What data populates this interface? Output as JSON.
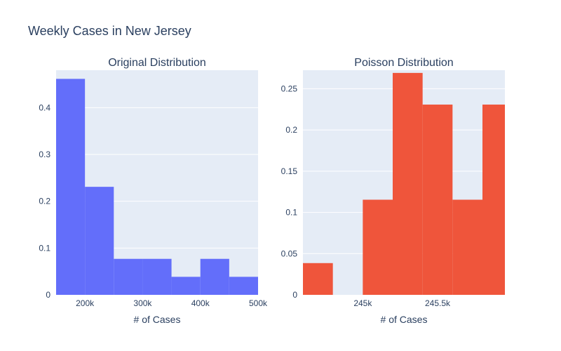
{
  "title": "Weekly Cases in New Jersey",
  "colors": {
    "plot_bg": "#E5ECF6",
    "grid": "#ffffff",
    "text": "#2a3f5f"
  },
  "chart_data": [
    {
      "type": "bar",
      "title": "Original Distribution",
      "xlabel": "# of Cases",
      "ylabel": "",
      "color": "#636EFA",
      "xlim": [
        150000,
        500000
      ],
      "ylim": [
        0,
        0.48
      ],
      "bins": [
        {
          "x0": 150000,
          "x1": 200000,
          "value": 0.4615
        },
        {
          "x0": 200000,
          "x1": 250000,
          "value": 0.2308
        },
        {
          "x0": 250000,
          "x1": 300000,
          "value": 0.0769
        },
        {
          "x0": 300000,
          "x1": 350000,
          "value": 0.0769
        },
        {
          "x0": 350000,
          "x1": 400000,
          "value": 0.0385
        },
        {
          "x0": 400000,
          "x1": 450000,
          "value": 0.0769
        },
        {
          "x0": 450000,
          "x1": 500000,
          "value": 0.0385
        }
      ],
      "x_ticks": [
        {
          "v": 200000,
          "label": "200k"
        },
        {
          "v": 300000,
          "label": "300k"
        },
        {
          "v": 400000,
          "label": "400k"
        },
        {
          "v": 500000,
          "label": "500k"
        }
      ],
      "y_ticks": [
        {
          "v": 0,
          "label": "0"
        },
        {
          "v": 0.1,
          "label": "0.1"
        },
        {
          "v": 0.2,
          "label": "0.2"
        },
        {
          "v": 0.3,
          "label": "0.3"
        },
        {
          "v": 0.4,
          "label": "0.4"
        }
      ]
    },
    {
      "type": "bar",
      "title": "Poisson Distribution",
      "xlabel": "# of Cases",
      "ylabel": "",
      "color": "#EF553B",
      "xlim": [
        244600,
        245950
      ],
      "ylim": [
        0,
        0.2725
      ],
      "bins": [
        {
          "x0": 244600,
          "x1": 244800,
          "value": 0.0385
        },
        {
          "x0": 244800,
          "x1": 245000,
          "value": 0
        },
        {
          "x0": 245000,
          "x1": 245200,
          "value": 0.1154
        },
        {
          "x0": 245200,
          "x1": 245400,
          "value": 0.2692
        },
        {
          "x0": 245400,
          "x1": 245600,
          "value": 0.2308
        },
        {
          "x0": 245600,
          "x1": 245800,
          "value": 0.1154
        },
        {
          "x0": 245800,
          "x1": 246000,
          "value": 0.2308
        }
      ],
      "x_ticks": [
        {
          "v": 245000,
          "label": "245k"
        },
        {
          "v": 245500,
          "label": "245.5k"
        }
      ],
      "y_ticks": [
        {
          "v": 0,
          "label": "0"
        },
        {
          "v": 0.05,
          "label": "0.05"
        },
        {
          "v": 0.1,
          "label": "0.1"
        },
        {
          "v": 0.15,
          "label": "0.15"
        },
        {
          "v": 0.2,
          "label": "0.2"
        },
        {
          "v": 0.25,
          "label": "0.25"
        }
      ]
    }
  ]
}
